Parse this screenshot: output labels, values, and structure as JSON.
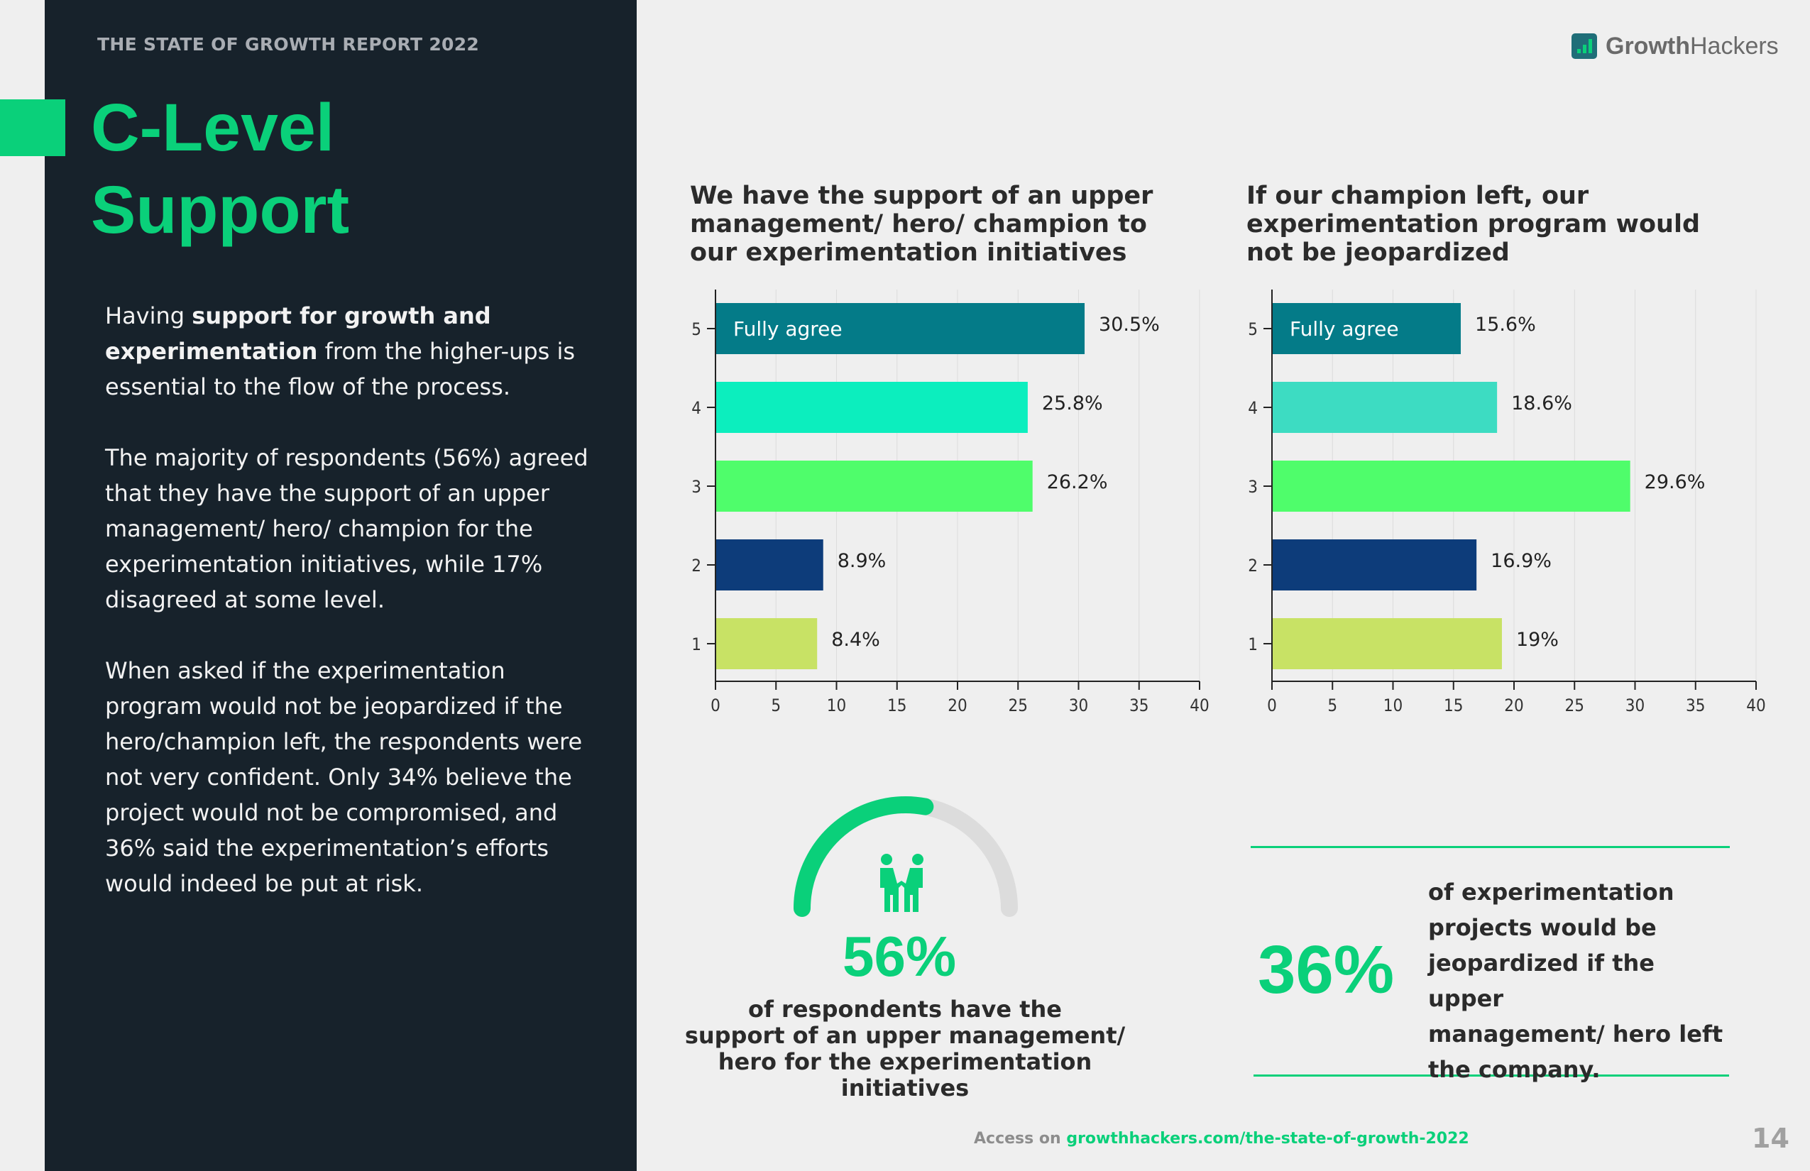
{
  "header": {
    "report_title": "THE STATE OF GROWTH REPORT 2022",
    "logo_growth": "Growth",
    "logo_hackers": "Hackers",
    "logo_icon": "bar-chart-icon"
  },
  "section": {
    "title_line1": "C-Level",
    "title_line2": "Support"
  },
  "body": {
    "p1_pre": "Having ",
    "p1_bold": "support for growth and experimentation",
    "p1_post": " from the higher-ups is essential to the flow of the process.",
    "p2": "The majority of respondents (56%) agreed that they have the support of an upper management/ hero/ champion for the experimentation initiatives, while 17% disagreed at some level.",
    "p3": "When asked if the experimentation program would not be jeopardized if the hero/champion left, the respondents were not very confident. Only 34% believe the project would not be compromised, and 36% said the experimentation’s efforts would indeed be put at risk."
  },
  "chart_data": [
    {
      "type": "bar",
      "orientation": "horizontal",
      "title": "We have the support of an upper management/ hero/ champion to our experimentation initiatives",
      "categories": [
        "5",
        "4",
        "3",
        "2",
        "1"
      ],
      "values": [
        30.5,
        25.8,
        26.2,
        8.9,
        8.4
      ],
      "value_labels": [
        "30.5%",
        "25.8%",
        "26.2%",
        "8.9%",
        "8.4%"
      ],
      "colors": [
        "#047b88",
        "#0ceebe",
        "#4ffd6b",
        "#0d3c7a",
        "#c8e265"
      ],
      "annotation": "Fully agree",
      "xlim": [
        0,
        40
      ],
      "xticks": [
        "0",
        "5",
        "10",
        "15",
        "20",
        "25",
        "30",
        "35",
        "40"
      ],
      "grid": true
    },
    {
      "type": "bar",
      "orientation": "horizontal",
      "title": "If our champion left, our experimentation program would not be jeopardized",
      "categories": [
        "5",
        "4",
        "3",
        "2",
        "1"
      ],
      "values": [
        15.6,
        18.6,
        29.6,
        16.9,
        19
      ],
      "value_labels": [
        "15.6%",
        "18.6%",
        "29.6%",
        "16.9%",
        "19%"
      ],
      "colors": [
        "#047b88",
        "#3ddcc2",
        "#4ffd6b",
        "#0d3c7a",
        "#c8e265"
      ],
      "annotation": "Fully agree",
      "xlim": [
        0,
        40
      ],
      "xticks": [
        "0",
        "5",
        "10",
        "15",
        "20",
        "25",
        "30",
        "35",
        "40"
      ],
      "grid": true
    }
  ],
  "stats": {
    "left_pct": "56%",
    "left_gauge_fraction": 0.56,
    "left_icon": "people-holding-hands-icon",
    "left_caption_1": "of respondents have the",
    "left_caption_2": "support of an upper management/",
    "left_caption_3": "hero for the experimentation",
    "left_caption_4": "initiatives",
    "right_pct": "36%",
    "right_caption_1": "of experimentation",
    "right_caption_2": "projects would be",
    "right_caption_3": "jeopardized if the upper",
    "right_caption_4": "management/ hero left",
    "right_caption_5": "the company."
  },
  "footer": {
    "access_label": "Access on ",
    "link": "growthhackers.com/the-state-of-growth-2022",
    "page_number": "14"
  },
  "colors": {
    "accent": "#0ad07a",
    "panel": "#17222b",
    "background": "#efefef"
  }
}
